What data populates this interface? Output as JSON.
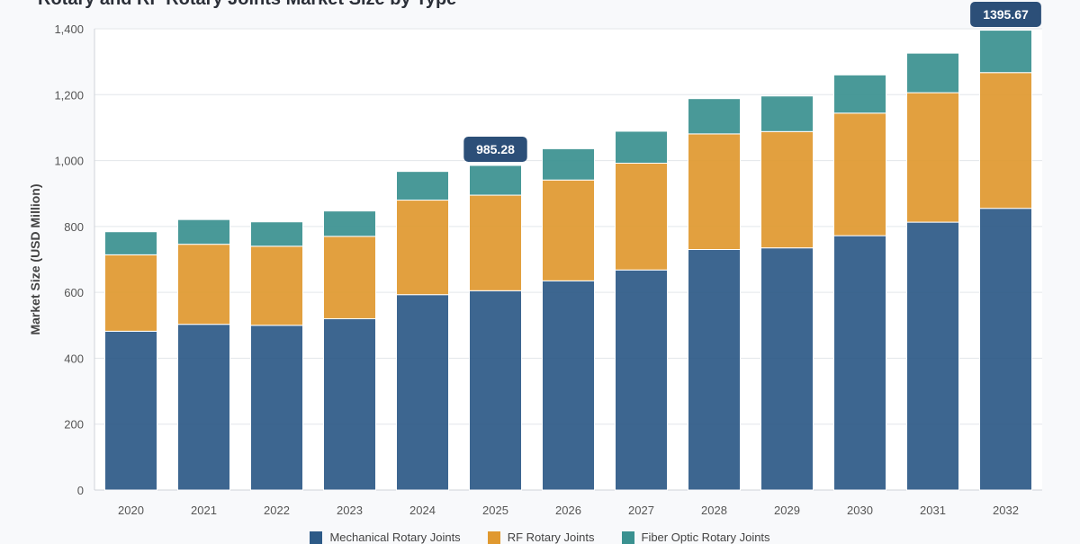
{
  "chart_data": {
    "type": "bar",
    "stacked": true,
    "title": "Rotary and RF Rotary Joints Market Size by Type",
    "ylabel": "Market Size (USD Million)",
    "xlabel": "",
    "ylim": [
      0,
      1400
    ],
    "yticks": [
      "0",
      "200",
      "400",
      "600",
      "800",
      "1,000",
      "1,200",
      "1,400"
    ],
    "grid": true,
    "legend_position": "bottom",
    "categories": [
      "2020",
      "2021",
      "2022",
      "2023",
      "2024",
      "2025",
      "2026",
      "2027",
      "2028",
      "2029",
      "2030",
      "2031",
      "2032"
    ],
    "series": [
      {
        "name": "Mechanical Rotary Joints",
        "color": "#2d5a87",
        "values": [
          482,
          503,
          500,
          520,
          593,
          605,
          635,
          668,
          730,
          735,
          772,
          813,
          855
        ]
      },
      {
        "name": "RF Rotary Joints",
        "color": "#e0992f",
        "values": [
          232,
          243,
          240,
          250,
          287,
          290,
          306,
          324,
          351,
          353,
          372,
          393,
          412
        ]
      },
      {
        "name": "Fiber Optic Rotary Joints",
        "color": "#3a9190",
        "values": [
          70,
          75,
          74,
          77,
          87,
          90.28,
          95,
          97,
          107,
          108,
          116,
          120,
          128.67
        ]
      }
    ],
    "annotations": [
      {
        "category": "2025",
        "text": "985.28"
      },
      {
        "category": "2032",
        "text": "1395.67"
      }
    ]
  }
}
